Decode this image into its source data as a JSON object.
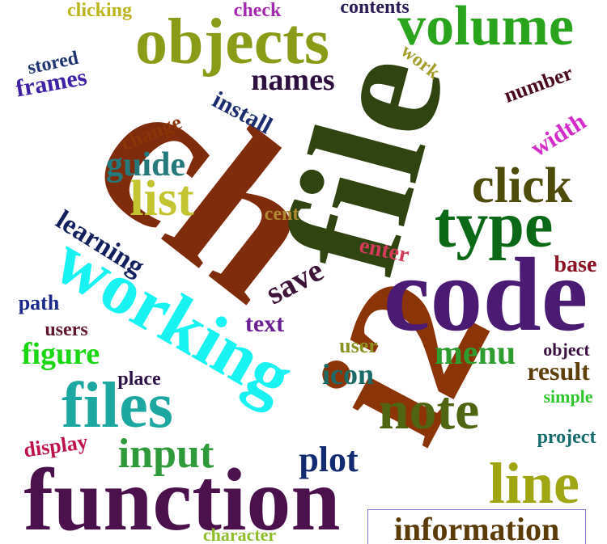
{
  "words": [
    {
      "id": "ch",
      "text": "ch",
      "color": "#7f2c0c"
    },
    {
      "id": "file",
      "text": "file",
      "color": "#2f4410"
    },
    {
      "id": "i2",
      "text": "i2",
      "color": "#8b3407"
    },
    {
      "id": "code",
      "text": "code",
      "color": "#4b1a72"
    },
    {
      "id": "function",
      "text": "function",
      "color": "#4a114c"
    },
    {
      "id": "working",
      "text": "working",
      "color": "#18f2f0"
    },
    {
      "id": "objects",
      "text": "objects",
      "color": "#8a9c17"
    },
    {
      "id": "volume",
      "text": "volume",
      "color": "#29a41c"
    },
    {
      "id": "type",
      "text": "type",
      "color": "#0b6816"
    },
    {
      "id": "files",
      "text": "files",
      "color": "#1ca8a0"
    },
    {
      "id": "note",
      "text": "note",
      "color": "#4f6512"
    },
    {
      "id": "line",
      "text": "line",
      "color": "#a0a513"
    },
    {
      "id": "click",
      "text": "click",
      "color": "#4d4c0b"
    },
    {
      "id": "list",
      "text": "list",
      "color": "#c2c430"
    },
    {
      "id": "input",
      "text": "input",
      "color": "#2e9a3a"
    },
    {
      "id": "information",
      "text": "information",
      "color": "#5b3c09"
    },
    {
      "id": "menu",
      "text": "menu",
      "color": "#2e9c2e"
    },
    {
      "id": "names",
      "text": "names",
      "color": "#2e1040"
    },
    {
      "id": "learning",
      "text": "learning",
      "color": "#12205e"
    },
    {
      "id": "guide",
      "text": "guide",
      "color": "#25797b"
    },
    {
      "id": "figure",
      "text": "figure",
      "color": "#1bd612"
    },
    {
      "id": "plot",
      "text": "plot",
      "color": "#122b72"
    },
    {
      "id": "save",
      "text": "save",
      "color": "#3d1438"
    },
    {
      "id": "frames",
      "text": "frames",
      "color": "#3f21a8"
    },
    {
      "id": "width",
      "text": "width",
      "color": "#d52bc9"
    },
    {
      "id": "install",
      "text": "install",
      "color": "#1d2e70"
    },
    {
      "id": "icon",
      "text": "icon",
      "color": "#1b6c68"
    },
    {
      "id": "result",
      "text": "result",
      "color": "#5d3f0a"
    },
    {
      "id": "text",
      "text": "text",
      "color": "#6a1f94"
    },
    {
      "id": "number",
      "text": "number",
      "color": "#4a0a1e"
    },
    {
      "id": "enter",
      "text": "enter",
      "color": "#d43a5a"
    },
    {
      "id": "change",
      "text": "change",
      "color": "#8b3409"
    },
    {
      "id": "base",
      "text": "base",
      "color": "#8b1325"
    },
    {
      "id": "clicking",
      "text": "clicking",
      "color": "#bcb51f"
    },
    {
      "id": "check",
      "text": "check",
      "color": "#a32ab0"
    },
    {
      "id": "contents",
      "text": "contents",
      "color": "#2a1a55"
    },
    {
      "id": "work",
      "text": "work",
      "color": "#a39e2c"
    },
    {
      "id": "stored",
      "text": "stored",
      "color": "#1f3570"
    },
    {
      "id": "path",
      "text": "path",
      "color": "#1c2a8a"
    },
    {
      "id": "users",
      "text": "users",
      "color": "#611530"
    },
    {
      "id": "place",
      "text": "place",
      "color": "#2d1248"
    },
    {
      "id": "display",
      "text": "display",
      "color": "#c0104e"
    },
    {
      "id": "character",
      "text": "character",
      "color": "#8ebc2a"
    },
    {
      "id": "cent",
      "text": "cent",
      "color": "#b08a30"
    },
    {
      "id": "user",
      "text": "user",
      "color": "#8a9222"
    },
    {
      "id": "object",
      "text": "object",
      "color": "#3a1040"
    },
    {
      "id": "simple",
      "text": "simple",
      "color": "#2ec72e"
    },
    {
      "id": "project",
      "text": "project",
      "color": "#156c6c"
    }
  ]
}
